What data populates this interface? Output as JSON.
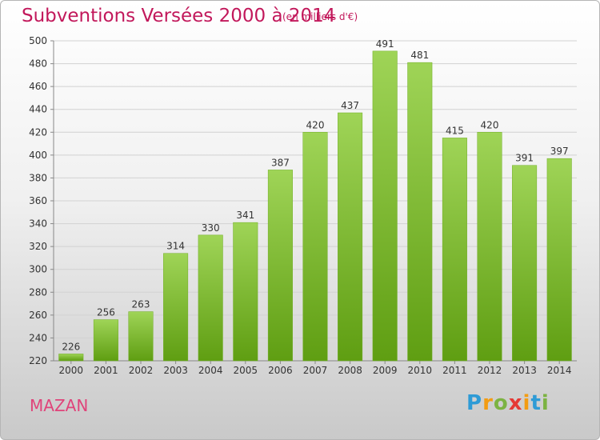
{
  "header": {
    "title": "Subventions Versées 2000 à 2014",
    "subtitle": "(en milliers d'€)"
  },
  "footer": {
    "commune": "MAZAN",
    "brand": "Proxiti",
    "brand_letters": [
      "P",
      "r",
      "o",
      "x",
      "i",
      "t",
      "i"
    ],
    "brand_colors": [
      "#2e9bd6",
      "#f39c12",
      "#7cb342",
      "#e53935",
      "#f39c12",
      "#2e9bd6",
      "#7cb342"
    ]
  },
  "colors": {
    "bar_top": "#9fd457",
    "bar_bottom": "#5f9e12",
    "accent": "#c2185b"
  },
  "chart_data": {
    "type": "bar",
    "categories": [
      "2000",
      "2001",
      "2002",
      "2003",
      "2004",
      "2005",
      "2006",
      "2007",
      "2008",
      "2009",
      "2010",
      "2011",
      "2012",
      "2013",
      "2014"
    ],
    "values": [
      226,
      256,
      263,
      314,
      330,
      341,
      387,
      420,
      437,
      491,
      481,
      415,
      420,
      391,
      397
    ],
    "title": "Subventions Versées 2000 à 2014",
    "subtitle": "(en milliers d'€)",
    "ylim": [
      220,
      500
    ],
    "yticks": [
      220,
      240,
      260,
      280,
      300,
      320,
      340,
      360,
      380,
      400,
      420,
      440,
      460,
      480,
      500
    ],
    "grid": true,
    "data_labels": true
  }
}
